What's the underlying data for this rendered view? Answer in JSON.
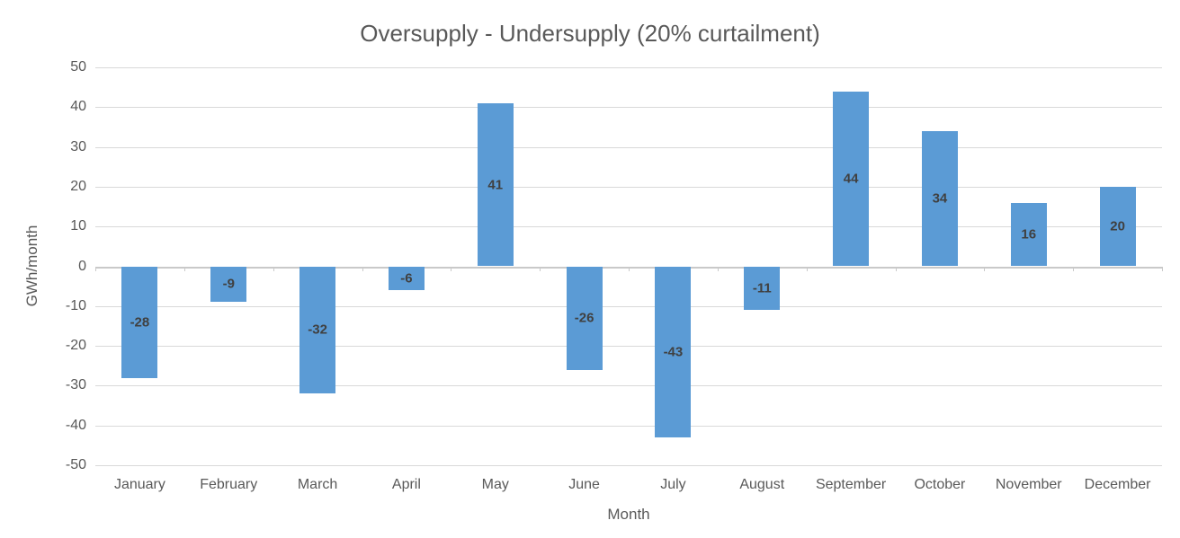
{
  "chart_data": {
    "type": "bar",
    "title": "Oversupply - Undersupply (20% curtailment)",
    "xlabel": "Month",
    "ylabel": "GWh/month",
    "categories": [
      "January",
      "February",
      "March",
      "April",
      "May",
      "June",
      "July",
      "August",
      "September",
      "October",
      "November",
      "December"
    ],
    "values": [
      -28,
      -9,
      -32,
      -6,
      41,
      -26,
      -43,
      -11,
      44,
      34,
      16,
      20
    ],
    "ylim": [
      -50,
      50
    ],
    "ytick_step": 10,
    "grid": true,
    "legend_position": "none",
    "bar_color": "#5B9BD5",
    "data_label_color": "#404040",
    "axis_text_color": "#595959",
    "gridline_color": "#D9D9D9",
    "axis_line_color": "#C9C9C9"
  }
}
